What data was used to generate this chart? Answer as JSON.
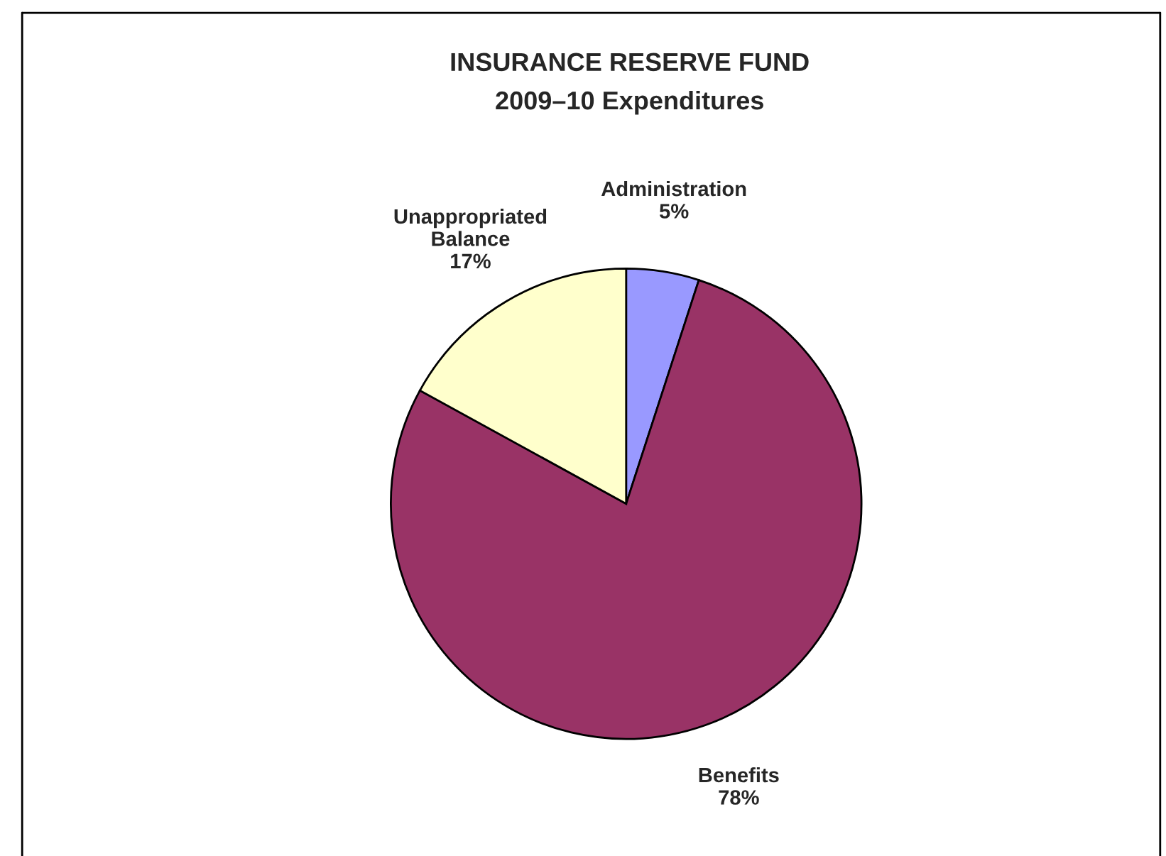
{
  "chart_data": {
    "type": "pie",
    "title": "INSURANCE RESERVE FUND",
    "subtitle": "2009–10 Expenditures",
    "categories": [
      "Administration",
      "Benefits",
      "Unappropriated\nBalance"
    ],
    "values": [
      5,
      78,
      17
    ],
    "colors": [
      "#9999ff",
      "#993366",
      "#ffffcc"
    ],
    "value_labels": [
      "5%",
      "78%",
      "17%"
    ]
  }
}
